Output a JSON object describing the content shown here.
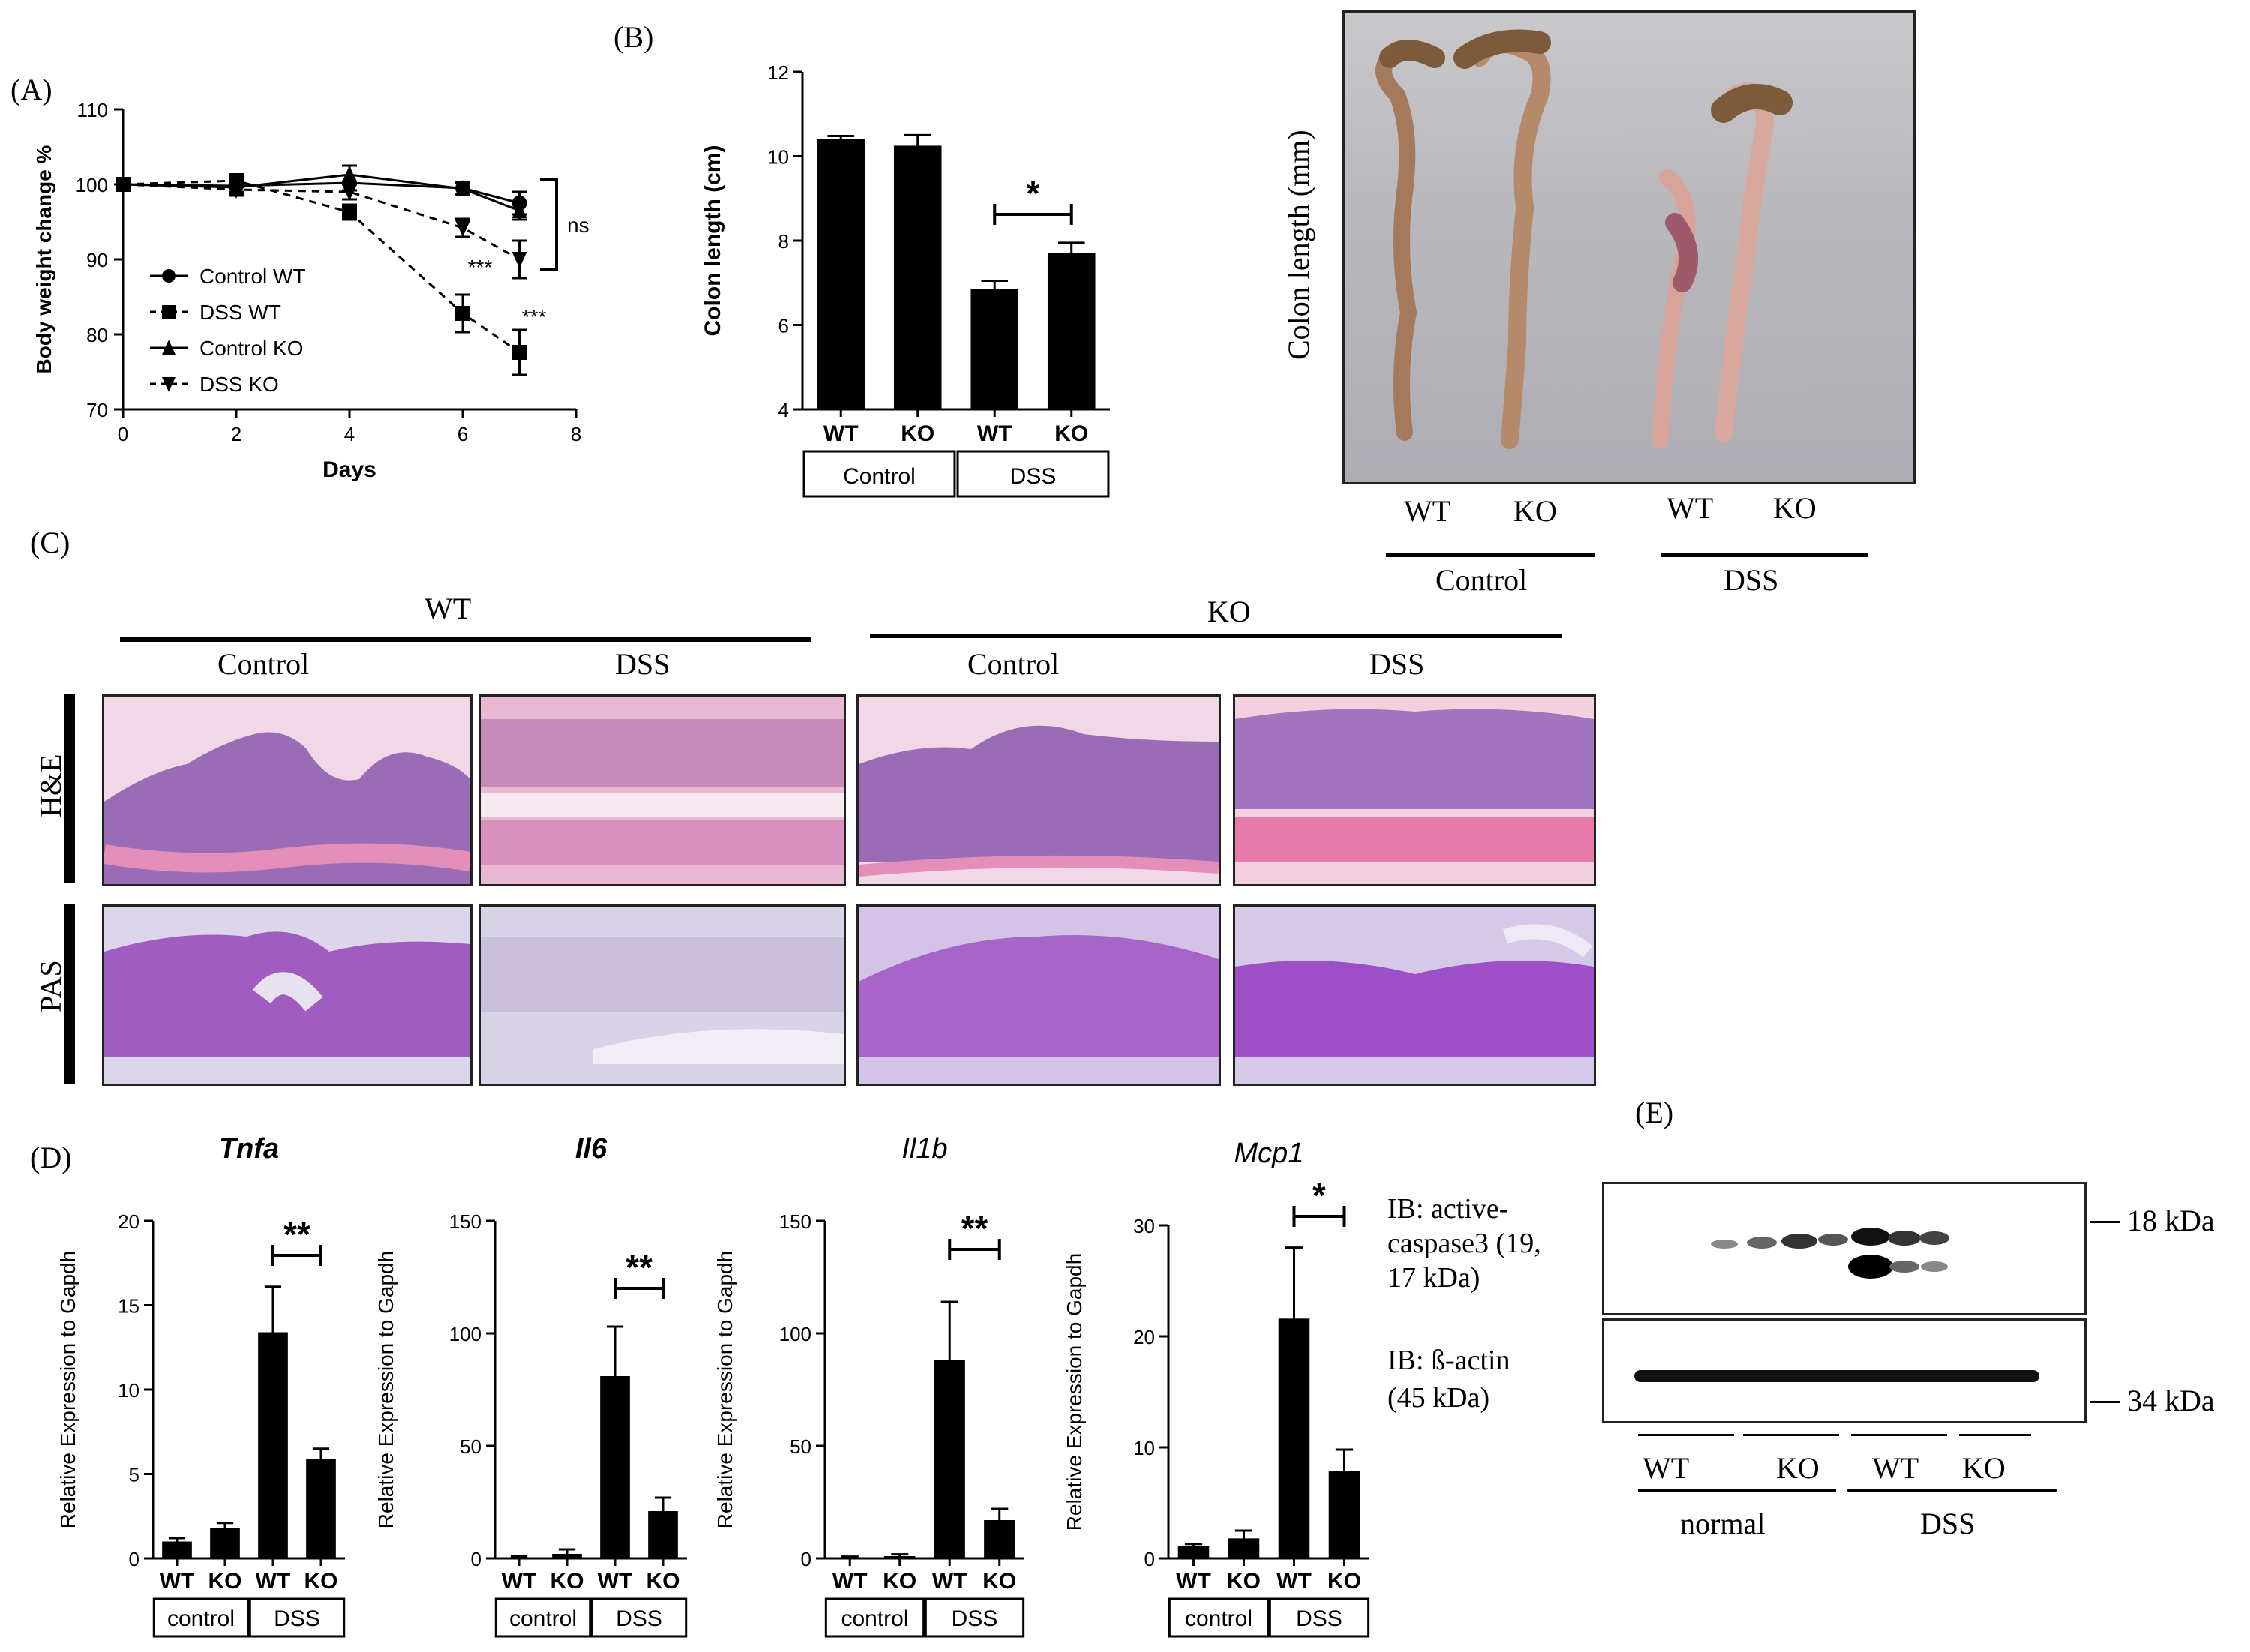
{
  "panels": {
    "a": "(A)",
    "b": "(B)",
    "c": "(C)",
    "d": "(D)",
    "e": "(E)"
  },
  "chart_data": [
    {
      "id": "A",
      "type": "line",
      "xlabel": "Days",
      "ylabel": "Body weight change %",
      "xlim": [
        0,
        8
      ],
      "ylim": [
        70,
        110
      ],
      "xticks": [
        0,
        2,
        4,
        6,
        8
      ],
      "yticks": [
        70,
        80,
        90,
        100,
        110
      ],
      "legend_position": "left",
      "series": [
        {
          "name": "Control WT",
          "marker": "circle",
          "dashed": false,
          "x": [
            0,
            2,
            4,
            6,
            7
          ],
          "y": [
            100,
            99.8,
            100.2,
            99.5,
            97.5
          ],
          "err": [
            0,
            0.8,
            1.0,
            0.8,
            1.5
          ]
        },
        {
          "name": "DSS WT",
          "marker": "square",
          "dashed": true,
          "x": [
            0,
            2,
            4,
            6,
            7
          ],
          "y": [
            100,
            100.5,
            96.3,
            82.8,
            77.6
          ],
          "err": [
            0,
            0.8,
            1.0,
            2.5,
            3.0
          ]
        },
        {
          "name": "Control KO",
          "marker": "triangle",
          "dashed": false,
          "x": [
            0,
            2,
            4,
            6,
            7
          ],
          "y": [
            100,
            99.6,
            101.3,
            99.4,
            96.5
          ],
          "err": [
            0,
            0.8,
            1.2,
            0.8,
            1.2
          ]
        },
        {
          "name": "DSS KO",
          "marker": "triangle-down",
          "dashed": true,
          "x": [
            0,
            2,
            4,
            6,
            7
          ],
          "y": [
            100,
            99.3,
            99.0,
            94.2,
            90.0
          ],
          "err": [
            0,
            0.8,
            1.0,
            1.2,
            2.5
          ]
        }
      ],
      "annotations": [
        "***",
        "***",
        "ns"
      ]
    },
    {
      "id": "B",
      "type": "bar",
      "ylabel": "Colon length (cm)",
      "ylim": [
        4,
        12
      ],
      "yticks": [
        4,
        6,
        8,
        10,
        12
      ],
      "categories": [
        "WT",
        "KO",
        "WT",
        "KO"
      ],
      "groups": [
        "Control",
        "DSS"
      ],
      "values": [
        10.4,
        10.25,
        6.85,
        7.7
      ],
      "errors": [
        0.08,
        0.25,
        0.2,
        0.25
      ],
      "annotations": [
        "*"
      ]
    },
    {
      "id": "D-Tnfa",
      "type": "bar",
      "title": "Tnfa",
      "ylabel": "Relative Expression to Gapdh",
      "ylim": [
        0,
        20
      ],
      "yticks": [
        0,
        5,
        10,
        15,
        20
      ],
      "categories": [
        "WT",
        "KO",
        "WT",
        "KO"
      ],
      "groups": [
        "control",
        "DSS"
      ],
      "values": [
        1.0,
        1.8,
        13.4,
        5.9
      ],
      "errors": [
        0.2,
        0.3,
        2.7,
        0.6
      ],
      "annotations": [
        "**"
      ]
    },
    {
      "id": "D-Il6",
      "type": "bar",
      "title": "Il6",
      "ylabel": "Relative Expression to Gapdh",
      "ylim": [
        0,
        150
      ],
      "yticks": [
        0,
        50,
        100,
        150
      ],
      "categories": [
        "WT",
        "KO",
        "WT",
        "KO"
      ],
      "groups": [
        "control",
        "DSS"
      ],
      "values": [
        0.5,
        2.0,
        81,
        21
      ],
      "errors": [
        0.5,
        2.0,
        22,
        6
      ],
      "annotations": [
        "**"
      ]
    },
    {
      "id": "D-Il1b",
      "type": "bar",
      "title": "Il1b",
      "ylabel": "Relative Expression to Gapdh",
      "ylim": [
        0,
        150
      ],
      "yticks": [
        0,
        50,
        100,
        150
      ],
      "categories": [
        "WT",
        "KO",
        "WT",
        "KO"
      ],
      "groups": [
        "control",
        "DSS"
      ],
      "values": [
        0.5,
        1.0,
        88,
        17
      ],
      "errors": [
        0.3,
        0.8,
        26,
        5
      ],
      "annotations": [
        "**"
      ]
    },
    {
      "id": "D-Mcp1",
      "type": "bar",
      "title": "Mcp1",
      "ylabel": "Relative Expression to Gapdh",
      "ylim": [
        0,
        30
      ],
      "yticks": [
        0,
        10,
        20,
        30
      ],
      "categories": [
        "WT",
        "KO",
        "WT",
        "KO"
      ],
      "groups": [
        "control",
        "DSS"
      ],
      "values": [
        1.1,
        1.8,
        21.6,
        7.9
      ],
      "errors": [
        0.2,
        0.7,
        6.4,
        1.9
      ],
      "annotations": [
        "*"
      ]
    }
  ],
  "photo_b": {
    "side_label": "Colon length (mm)",
    "lanes": [
      "WT",
      "KO",
      "WT",
      "KO"
    ],
    "groups": [
      "Control",
      "DSS"
    ]
  },
  "histology": {
    "genotypes": [
      "WT",
      "KO"
    ],
    "conditions": [
      "Control",
      "DSS",
      "Control",
      "DSS"
    ],
    "stains": [
      "H&E",
      "PAS"
    ]
  },
  "blot": {
    "label_top_1": "IB: active-",
    "label_top_2": "caspase3 (19,",
    "label_top_3": "17 kDa)",
    "label_bottom_1": "IB: ß-actin",
    "label_bottom_2": "(45 kDa)",
    "marker_top": "18 kDa",
    "marker_bottom": "34 kDa",
    "lanes": [
      "WT",
      "KO",
      "WT",
      "KO"
    ],
    "groups": [
      "normal",
      "DSS"
    ]
  },
  "colors": {
    "he_pink": "#e7a8c8",
    "he_purple": "#7a4b9a",
    "pas_bg": "#d9d2e8",
    "pas_purple": "#8a3fb0",
    "blot_band": "#111111"
  }
}
